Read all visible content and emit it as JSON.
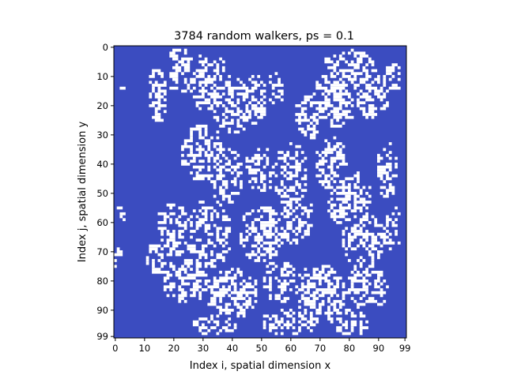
{
  "chart_data": {
    "type": "heatmap",
    "title": "3784 random walkers, ps = 0.1",
    "xlabel": "Index i, spatial dimension x",
    "ylabel": "Index j, spatial dimension y",
    "grid_size": [
      100,
      100
    ],
    "xlim": [
      0,
      99
    ],
    "ylim": [
      99,
      0
    ],
    "x_ticks": [
      "0",
      "10",
      "20",
      "30",
      "40",
      "50",
      "60",
      "70",
      "80",
      "90",
      "99"
    ],
    "y_ticks": [
      "0",
      "10",
      "20",
      "30",
      "40",
      "50",
      "60",
      "70",
      "80",
      "90",
      "99"
    ],
    "x_tick_values": [
      0,
      10,
      20,
      30,
      40,
      50,
      60,
      70,
      80,
      90,
      99
    ],
    "y_tick_values": [
      0,
      10,
      20,
      30,
      40,
      50,
      60,
      70,
      80,
      90,
      99
    ],
    "colors": {
      "empty": "#3b4cc0",
      "occupied": "#ffffff"
    },
    "occupied_cells": 3784,
    "grid": false,
    "legend": "none"
  }
}
